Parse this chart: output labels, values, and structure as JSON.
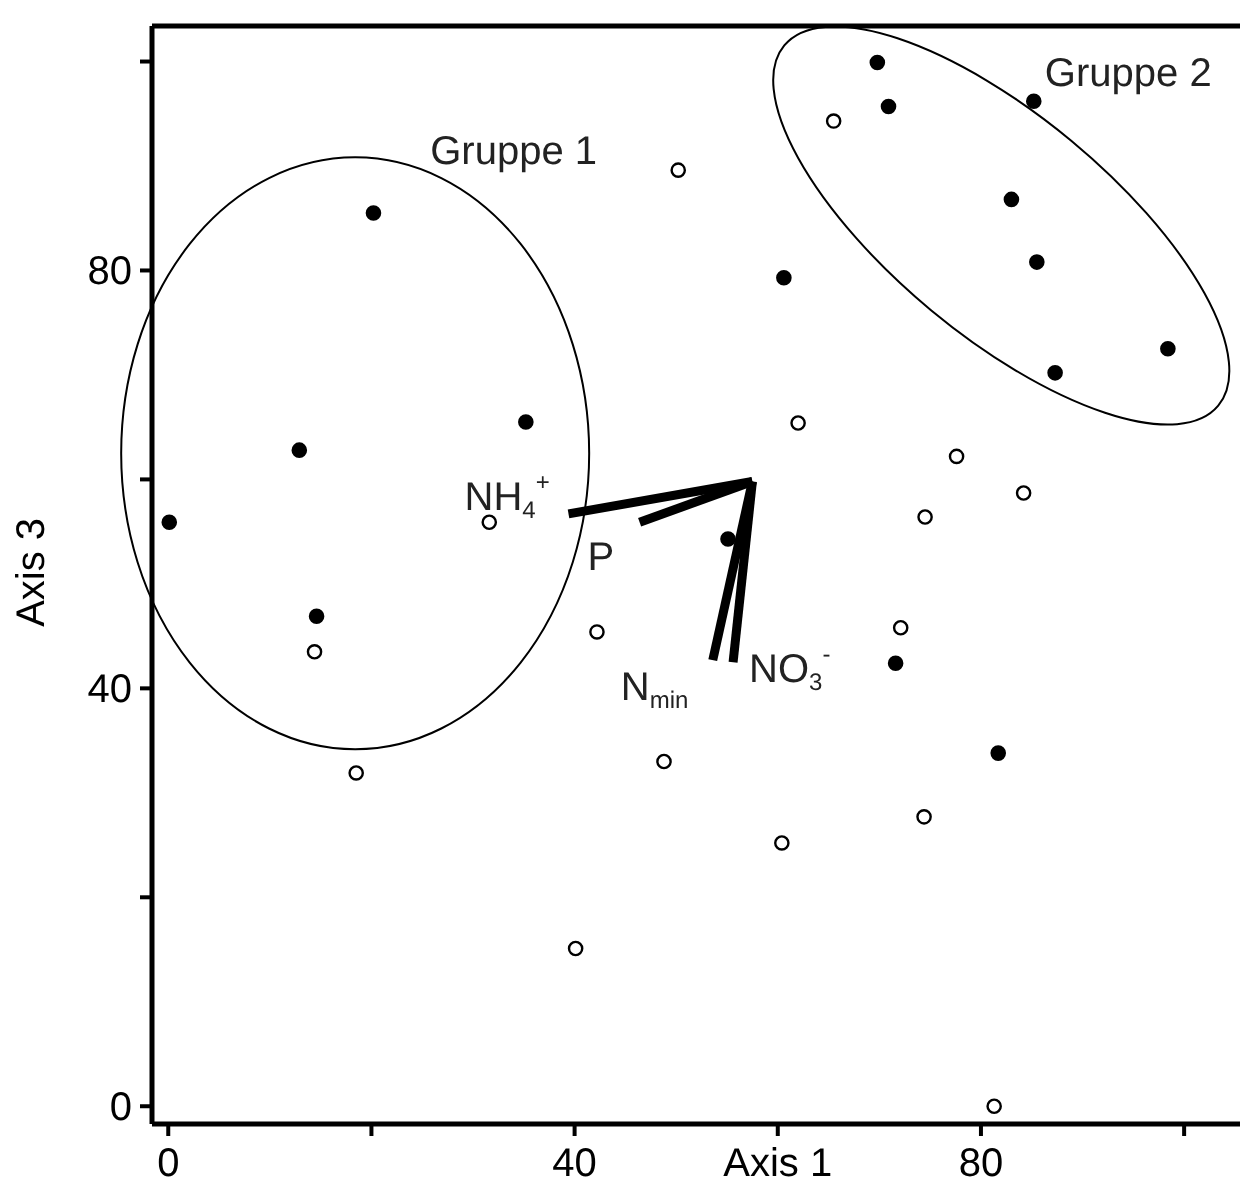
{
  "chart_data": {
    "type": "scatter",
    "xlabel": "Axis 1",
    "ylabel": "Axis 3",
    "xlim": [
      -1.6,
      105.5
    ],
    "ylim": [
      -1.7,
      103.4
    ],
    "xticks": [
      0,
      {
        "value": 20,
        "label": null
      },
      40,
      {
        "value": 60,
        "label": null
      },
      80,
      {
        "value": 100,
        "label": null
      }
    ],
    "yticks": [
      0,
      {
        "value": 20,
        "label": null
      },
      40,
      {
        "value": 60,
        "label": null
      },
      80,
      {
        "value": 100,
        "label": null
      }
    ],
    "grid": false,
    "marker": "circle",
    "annotations": [
      "Gruppe 1",
      "Gruppe 2"
    ],
    "series": [
      {
        "color": "#000000",
        "x": [
          20.2,
          12.9,
          35.2,
          0.1,
          14.6,
          69.8,
          70.9,
          85.2,
          83.0,
          85.5,
          98.4,
          87.3,
          60.6,
          55.1,
          71.6,
          81.7
        ],
        "values": [
          85.5,
          62.8,
          65.5,
          55.9,
          46.9,
          99.9,
          95.7,
          96.2,
          86.8,
          80.8,
          72.5,
          70.2,
          79.3,
          54.3,
          42.4,
          33.8
        ]
      },
      {
        "color": "#ffffff",
        "x": [
          50.2,
          31.6,
          65.5,
          62.0,
          77.6,
          84.2,
          74.5,
          14.4,
          18.5,
          42.2,
          48.8,
          40.1,
          72.1,
          60.4,
          74.4,
          81.3
        ],
        "values": [
          89.6,
          55.9,
          94.3,
          65.4,
          62.2,
          58.7,
          56.4,
          43.5,
          31.9,
          45.4,
          33.0,
          15.1,
          45.8,
          25.2,
          27.7,
          0
        ]
      },
      {
        "type": "line",
        "name": "NH$_{4}$$^{+}$",
        "color": "#000000",
        "marker": "none",
        "x": [
          57.5,
          39.4
        ],
        "values": [
          59.8,
          56.7
        ]
      },
      {
        "type": "line",
        "name": "P",
        "color": "#000000",
        "marker": "none",
        "x": [
          57.5,
          46.4
        ],
        "values": [
          59.8,
          55.9
        ]
      },
      {
        "type": "line",
        "name": "N$_{min}$",
        "color": "#000000",
        "marker": "none",
        "x": [
          57.5,
          53.6
        ],
        "values": [
          59.8,
          42.7
        ]
      },
      {
        "type": "line",
        "name": "NO$_{3}$$^{-}$",
        "color": "#000000",
        "marker": "none",
        "x": [
          57.5,
          55.6
        ],
        "values": [
          59.8,
          42.5
        ]
      }
    ]
  }
}
